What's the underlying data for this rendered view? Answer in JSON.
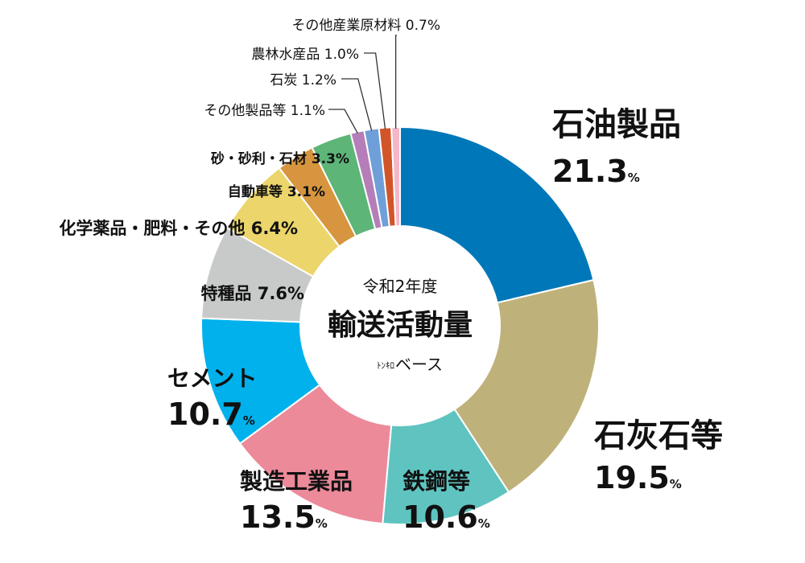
{
  "chart_data": {
    "type": "pie",
    "center": {
      "line1": "令和2年度",
      "line2": "輸送活動量",
      "line3_small": "ﾄﾝｷﾛ",
      "line3": "ベース"
    },
    "percent_sign": "%",
    "slices": [
      {
        "name": "石油製品",
        "value": 21.3,
        "value_text": "21.3",
        "color": "#0077b8"
      },
      {
        "name": "石灰石等",
        "value": 19.5,
        "value_text": "19.5",
        "color": "#bfb17a"
      },
      {
        "name": "鉄鋼等",
        "value": 10.6,
        "value_text": "10.6",
        "color": "#5fc4c0"
      },
      {
        "name": "製造工業品",
        "value": 13.5,
        "value_text": "13.5",
        "color": "#ec8a9a"
      },
      {
        "name": "セメント",
        "value": 10.7,
        "value_text": "10.7",
        "color": "#00b1ec"
      },
      {
        "name": "特種品",
        "value": 7.6,
        "value_text": "7.6%",
        "color": "#c8c9c9"
      },
      {
        "name": "化学薬品・肥料・その他",
        "value": 6.4,
        "value_text": "6.4%",
        "color": "#ecd56a"
      },
      {
        "name": "自動車等",
        "value": 3.1,
        "value_text": "3.1%",
        "color": "#d6953e"
      },
      {
        "name": "砂・砂利・石材",
        "value": 3.3,
        "value_text": "3.3%",
        "color": "#5db578"
      },
      {
        "name": "その他製品等",
        "value": 1.1,
        "value_text": "1.1%",
        "color": "#b57eb8"
      },
      {
        "name": "石炭",
        "value": 1.2,
        "value_text": "1.2%",
        "color": "#6f9fd8"
      },
      {
        "name": "農林水産品",
        "value": 1.0,
        "value_text": "1.0%",
        "color": "#d2552a"
      },
      {
        "name": "その他産業原材料",
        "value": 0.7,
        "value_text": "0.7%",
        "color": "#f4b7c8"
      }
    ]
  }
}
